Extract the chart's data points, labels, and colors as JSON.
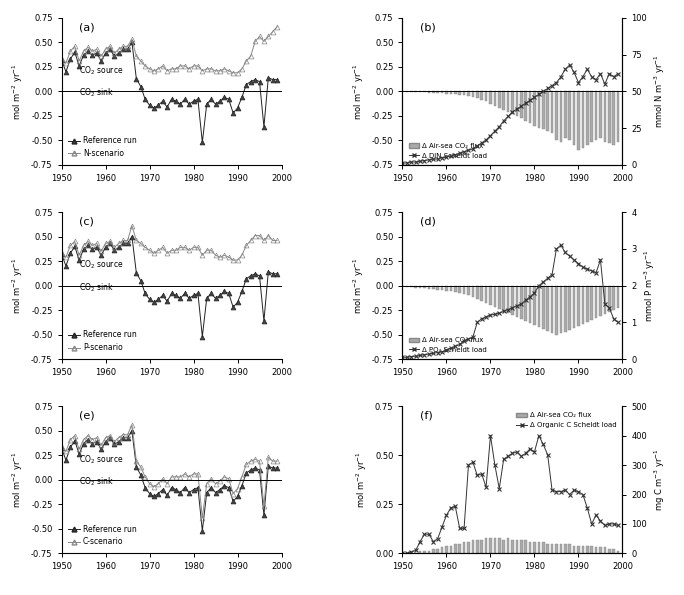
{
  "years": [
    1950,
    1951,
    1952,
    1953,
    1954,
    1955,
    1956,
    1957,
    1958,
    1959,
    1960,
    1961,
    1962,
    1963,
    1964,
    1965,
    1966,
    1967,
    1968,
    1969,
    1970,
    1971,
    1972,
    1973,
    1974,
    1975,
    1976,
    1977,
    1978,
    1979,
    1980,
    1981,
    1982,
    1983,
    1984,
    1985,
    1986,
    1987,
    1988,
    1989,
    1990,
    1991,
    1992,
    1993,
    1994,
    1995,
    1996,
    1997,
    1998,
    1999
  ],
  "ref_run": [
    0.32,
    0.2,
    0.33,
    0.4,
    0.26,
    0.37,
    0.41,
    0.37,
    0.39,
    0.31,
    0.39,
    0.43,
    0.36,
    0.39,
    0.43,
    0.43,
    0.5,
    0.13,
    0.05,
    -0.08,
    -0.14,
    -0.17,
    -0.14,
    -0.1,
    -0.16,
    -0.08,
    -0.1,
    -0.13,
    -0.08,
    -0.13,
    -0.1,
    -0.08,
    -0.52,
    -0.13,
    -0.08,
    -0.13,
    -0.1,
    -0.06,
    -0.08,
    -0.22,
    -0.17,
    -0.06,
    0.07,
    0.1,
    0.12,
    0.1,
    -0.36,
    0.14,
    0.12,
    0.12
  ],
  "n_scenario": [
    0.33,
    0.29,
    0.41,
    0.46,
    0.31,
    0.41,
    0.45,
    0.41,
    0.43,
    0.36,
    0.43,
    0.46,
    0.39,
    0.43,
    0.46,
    0.46,
    0.53,
    0.36,
    0.31,
    0.26,
    0.23,
    0.21,
    0.23,
    0.26,
    0.21,
    0.23,
    0.23,
    0.26,
    0.26,
    0.23,
    0.26,
    0.26,
    0.21,
    0.23,
    0.23,
    0.21,
    0.21,
    0.23,
    0.21,
    0.19,
    0.19,
    0.23,
    0.31,
    0.36,
    0.51,
    0.56,
    0.51,
    0.56,
    0.61,
    0.66
  ],
  "p_scenario": [
    0.33,
    0.29,
    0.41,
    0.45,
    0.31,
    0.41,
    0.45,
    0.41,
    0.43,
    0.35,
    0.43,
    0.45,
    0.39,
    0.43,
    0.46,
    0.46,
    0.61,
    0.46,
    0.43,
    0.39,
    0.36,
    0.33,
    0.36,
    0.39,
    0.33,
    0.36,
    0.36,
    0.39,
    0.39,
    0.36,
    0.39,
    0.39,
    0.31,
    0.36,
    0.36,
    0.31,
    0.29,
    0.31,
    0.29,
    0.26,
    0.26,
    0.31,
    0.41,
    0.46,
    0.51,
    0.51,
    0.46,
    0.51,
    0.46,
    0.46
  ],
  "c_scenario": [
    0.33,
    0.29,
    0.41,
    0.45,
    0.31,
    0.41,
    0.45,
    0.41,
    0.43,
    0.35,
    0.43,
    0.45,
    0.39,
    0.43,
    0.46,
    0.46,
    0.56,
    0.19,
    0.13,
    0.03,
    -0.04,
    -0.07,
    -0.04,
    0.01,
    -0.04,
    0.03,
    0.03,
    0.03,
    0.06,
    0.03,
    0.06,
    0.06,
    -0.39,
    -0.04,
    0.01,
    -0.04,
    -0.01,
    0.03,
    0.01,
    -0.14,
    -0.09,
    0.03,
    0.16,
    0.19,
    0.21,
    0.19,
    -0.27,
    0.23,
    0.19,
    0.19
  ],
  "din_bar": [
    0.0,
    -0.01,
    -0.01,
    -0.01,
    -0.01,
    -0.01,
    -0.02,
    -0.02,
    -0.02,
    -0.02,
    -0.03,
    -0.03,
    -0.03,
    -0.04,
    -0.04,
    -0.05,
    -0.06,
    -0.07,
    -0.09,
    -0.1,
    -0.13,
    -0.15,
    -0.17,
    -0.19,
    -0.21,
    -0.23,
    -0.25,
    -0.27,
    -0.3,
    -0.32,
    -0.35,
    -0.37,
    -0.38,
    -0.4,
    -0.42,
    -0.5,
    -0.52,
    -0.48,
    -0.5,
    -0.55,
    -0.6,
    -0.58,
    -0.55,
    -0.52,
    -0.5,
    -0.48,
    -0.52,
    -0.53,
    -0.55,
    -0.52
  ],
  "din_line": [
    1.0,
    1.5,
    2.0,
    2.0,
    2.5,
    3.0,
    3.5,
    4.0,
    4.0,
    5.0,
    5.5,
    6.0,
    7.0,
    8.0,
    9.0,
    10.0,
    11.0,
    13.0,
    15.0,
    17.0,
    20.0,
    23.0,
    26.0,
    30.0,
    33.0,
    36.0,
    38.0,
    40.0,
    42.0,
    44.0,
    46.0,
    48.0,
    50.0,
    52.0,
    54.0,
    56.0,
    60.0,
    65.0,
    68.0,
    63.0,
    56.0,
    60.0,
    65.0,
    60.0,
    58.0,
    62.0,
    55.0,
    62.0,
    60.0,
    62.0
  ],
  "po4_bar": [
    0.0,
    -0.01,
    -0.01,
    -0.02,
    -0.02,
    -0.02,
    -0.03,
    -0.03,
    -0.04,
    -0.04,
    -0.05,
    -0.06,
    -0.07,
    -0.08,
    -0.09,
    -0.1,
    -0.12,
    -0.14,
    -0.16,
    -0.18,
    -0.2,
    -0.22,
    -0.24,
    -0.26,
    -0.28,
    -0.3,
    -0.32,
    -0.34,
    -0.36,
    -0.38,
    -0.4,
    -0.42,
    -0.44,
    -0.46,
    -0.48,
    -0.5,
    -0.48,
    -0.47,
    -0.45,
    -0.43,
    -0.41,
    -0.39,
    -0.37,
    -0.35,
    -0.33,
    -0.31,
    -0.29,
    -0.27,
    -0.25,
    -0.23
  ],
  "po4_line": [
    0.05,
    0.05,
    0.07,
    0.08,
    0.1,
    0.12,
    0.14,
    0.16,
    0.18,
    0.2,
    0.25,
    0.3,
    0.35,
    0.4,
    0.5,
    0.55,
    0.6,
    1.0,
    1.1,
    1.15,
    1.2,
    1.22,
    1.25,
    1.3,
    1.35,
    1.4,
    1.45,
    1.5,
    1.6,
    1.7,
    1.8,
    2.0,
    2.1,
    2.2,
    2.3,
    3.0,
    3.1,
    2.9,
    2.8,
    2.7,
    2.6,
    2.5,
    2.45,
    2.4,
    2.35,
    2.7,
    1.5,
    1.4,
    1.1,
    1.0
  ],
  "orgc_bar": [
    0.0,
    0.0,
    0.0,
    0.0,
    0.01,
    0.01,
    0.01,
    0.02,
    0.02,
    0.03,
    0.04,
    0.04,
    0.05,
    0.05,
    0.06,
    0.06,
    0.07,
    0.07,
    0.07,
    0.08,
    0.08,
    0.08,
    0.08,
    0.07,
    0.08,
    0.07,
    0.07,
    0.07,
    0.07,
    0.06,
    0.06,
    0.06,
    0.06,
    0.05,
    0.05,
    0.05,
    0.05,
    0.05,
    0.05,
    0.04,
    0.04,
    0.04,
    0.04,
    0.04,
    0.03,
    0.03,
    0.03,
    0.02,
    0.02,
    0.01
  ],
  "orgc_line": [
    0.0,
    0.0,
    5.0,
    10.0,
    40.0,
    65.0,
    65.0,
    40.0,
    50.0,
    90.0,
    130.0,
    155.0,
    160.0,
    85.0,
    85.0,
    300.0,
    310.0,
    265.0,
    270.0,
    225.0,
    400.0,
    300.0,
    220.0,
    320.0,
    330.0,
    340.0,
    345.0,
    330.0,
    340.0,
    355.0,
    345.0,
    400.0,
    370.0,
    335.0,
    215.0,
    210.0,
    210.0,
    215.0,
    200.0,
    215.0,
    210.0,
    200.0,
    155.0,
    100.0,
    130.0,
    110.0,
    95.0,
    100.0,
    100.0,
    95.0
  ]
}
